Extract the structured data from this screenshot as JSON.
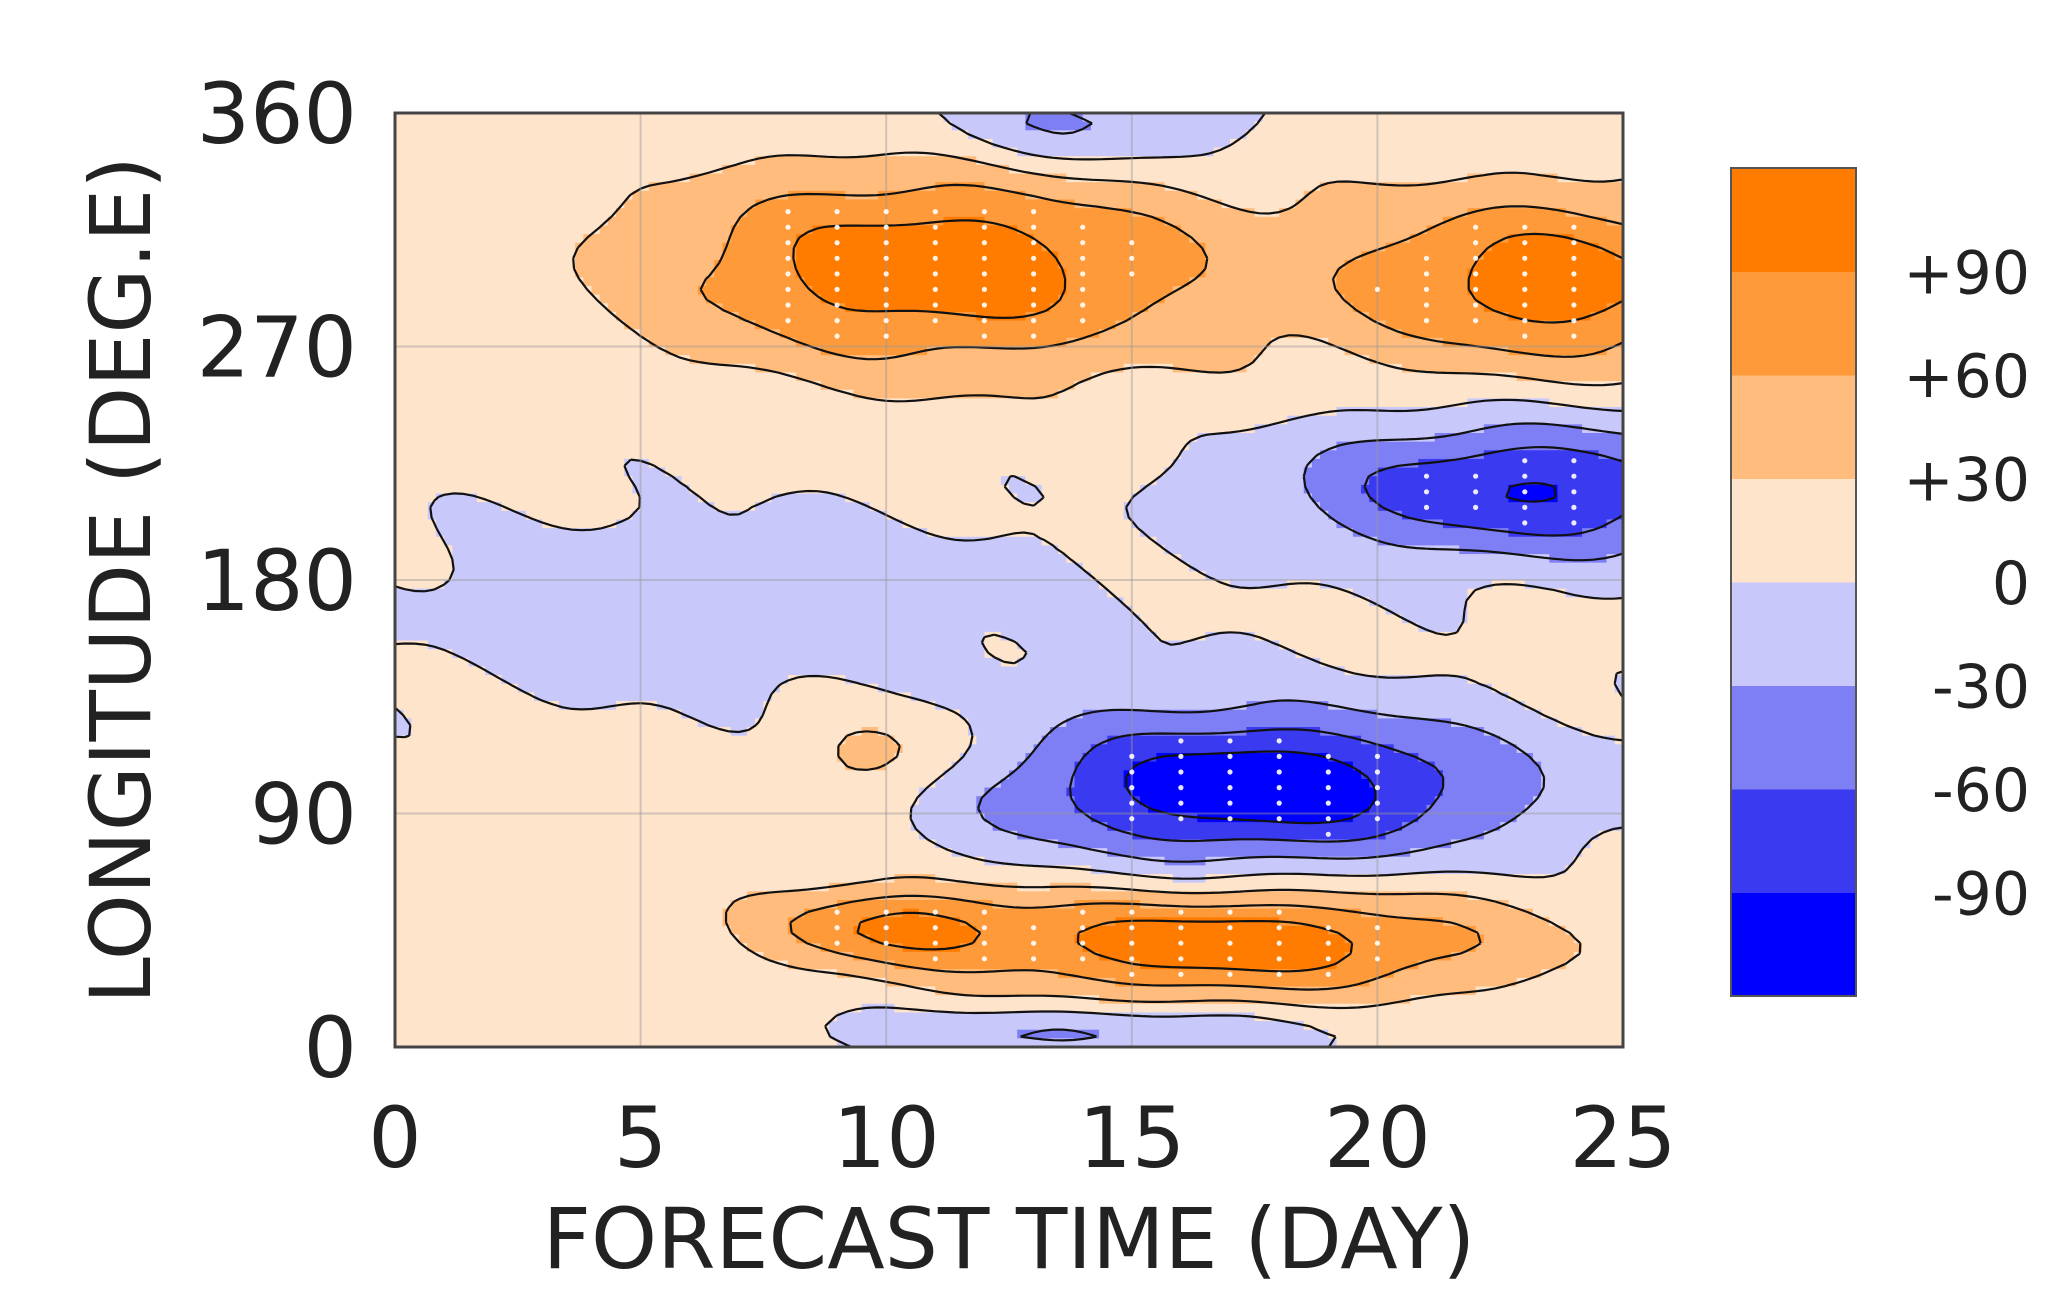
{
  "chart_data": {
    "type": "heatmap",
    "subtype": "filled-contour (Hovmoller diagram)",
    "xlabel": "FORECAST TIME (DAY)",
    "ylabel": "LONGITUDE (DEG.E)",
    "xlim": [
      0,
      25
    ],
    "ylim": [
      0,
      360
    ],
    "xticks": [
      0,
      5,
      10,
      15,
      20,
      25
    ],
    "xtick_labels": [
      "0",
      "5",
      "10",
      "15",
      "20",
      "25"
    ],
    "yticks": [
      0,
      90,
      180,
      270,
      360
    ],
    "ytick_labels": [
      "0",
      "90",
      "180",
      "270",
      "360"
    ],
    "grid": true,
    "contour_levels": [
      -90,
      -60,
      -30,
      0,
      30,
      60,
      90
    ],
    "colorbar": {
      "placement": "right",
      "levels": [
        -120,
        -90,
        -60,
        -30,
        0,
        30,
        60,
        90,
        120
      ],
      "colors_low_to_high": [
        "#0000ff",
        "#3a3af0",
        "#7f7ff5",
        "#c8c8fa",
        "#ffe4cc",
        "#ffbc7c",
        "#ff9a3a",
        "#ff7c00"
      ],
      "tick_labels": [
        "+90",
        "+60",
        "+30",
        "0",
        "-30",
        "-60",
        "-90"
      ],
      "tick_values": [
        90,
        60,
        30,
        0,
        -30,
        -60,
        -90
      ]
    },
    "features": [
      {
        "sign": "positive",
        "day_start": 5,
        "day_end": 16,
        "lon_start": 255,
        "lon_end": 330,
        "peak": 105,
        "day_peak": 11,
        "lon_peak": 300
      },
      {
        "sign": "positive",
        "day_start": 17,
        "day_end": 25,
        "lon_start": 265,
        "lon_end": 330,
        "peak": 100,
        "day_peak": 23.5,
        "lon_peak": 295
      },
      {
        "sign": "negative",
        "day_start": 15,
        "day_end": 24,
        "lon_start": 200,
        "lon_end": 250,
        "peak": -100,
        "day_peak": 23,
        "lon_peak": 215
      },
      {
        "sign": "negative",
        "day_start": 14,
        "day_end": 24,
        "lon_start": 75,
        "lon_end": 130,
        "peak": -125,
        "day_peak": 17.5,
        "lon_peak": 100
      },
      {
        "sign": "positive",
        "day_start": 7,
        "day_end": 12,
        "lon_start": 35,
        "lon_end": 65,
        "peak": 70,
        "day_peak": 10,
        "lon_peak": 47
      },
      {
        "sign": "positive",
        "day_start": 13,
        "day_end": 24,
        "lon_start": 25,
        "lon_end": 65,
        "peak": 105,
        "day_peak": 17,
        "lon_peak": 40
      },
      {
        "sign": "negative",
        "day_start": 9,
        "day_end": 18,
        "lon_start": 0,
        "lon_end": 18,
        "peak": -45,
        "day_peak": 14,
        "lon_peak": 6
      },
      {
        "sign": "negative",
        "day_start": 11,
        "day_end": 17,
        "lon_start": 325,
        "lon_end": 360,
        "peak": -50,
        "day_peak": 14,
        "lon_peak": 355
      },
      {
        "sign": "negative",
        "day_start": 1,
        "day_end": 15,
        "lon_start": 130,
        "lon_end": 200,
        "peak": -25,
        "day_peak": 7,
        "lon_peak": 170
      },
      {
        "sign": "positive",
        "day_start": 8,
        "day_end": 12,
        "lon_start": 95,
        "lon_end": 130,
        "peak": 40,
        "day_peak": 10,
        "lon_peak": 112
      }
    ],
    "significance_markers": "white dots mark statistically significant points inside the strongest anomaly regions"
  }
}
